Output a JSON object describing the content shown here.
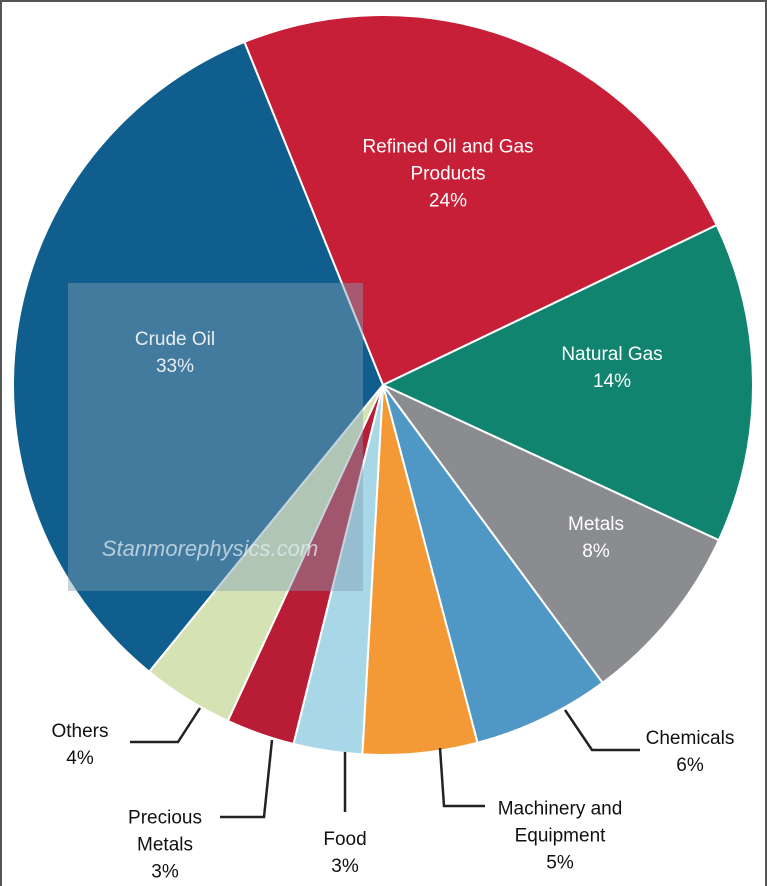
{
  "chart_data": {
    "type": "pie",
    "categories": [
      "Refined Oil and Gas Products",
      "Natural Gas",
      "Metals",
      "Chemicals",
      "Machinery and Equipment",
      "Food",
      "Precious Metals",
      "Others",
      "Crude Oil"
    ],
    "values": [
      24,
      14,
      8,
      6,
      5,
      3,
      3,
      4,
      33
    ],
    "value_labels": [
      "24%",
      "14%",
      "8%",
      "6%",
      "5%",
      "3%",
      "3%",
      "4%",
      "33%"
    ],
    "colors": [
      "#c71f37",
      "#10846f",
      "#8a8c8f",
      "#4f98c5",
      "#f39a37",
      "#a8d8e8",
      "#b91c35",
      "#d5e3b4",
      "#0f5e8e"
    ],
    "watermark": "Stanmorephysics.com"
  }
}
